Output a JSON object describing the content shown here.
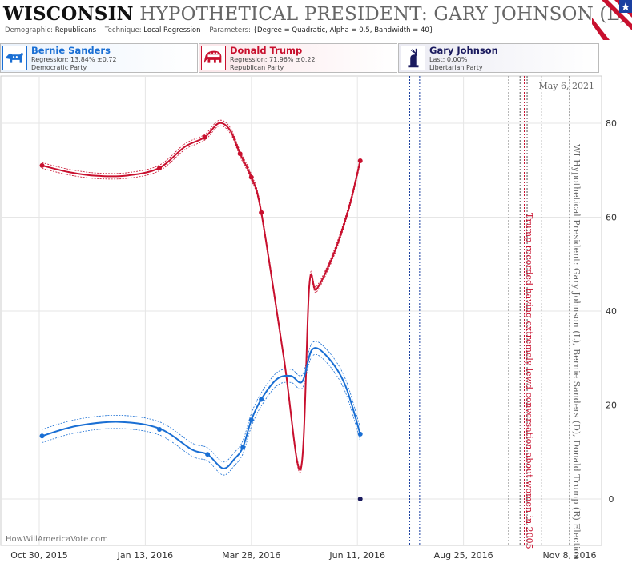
{
  "header": {
    "state": "WISCONSIN",
    "title_rest": "HYPOTHETICAL PRESIDENT: GARY JOHNSON (L) B",
    "demographic_label": "Demographic:",
    "demographic_value": "Republicans",
    "technique_label": "Technique:",
    "technique_value": "Local Regression",
    "parameters_label": "Parameters:",
    "parameters_value": "{Degree = Quadratic, Alpha = 0.5, Bandwidth = 40}"
  },
  "legend": [
    {
      "name": "Bernie Sanders",
      "line1": "Regression: 13.84% ±0.72",
      "line2": "Democratic Party",
      "color": "#1a6fd4",
      "icon": "donkey-icon"
    },
    {
      "name": "Donald Trump",
      "line1": "Regression: 71.96% ±0.22",
      "line2": "Republican Party",
      "color": "#c8102e",
      "icon": "elephant-icon"
    },
    {
      "name": "Gary Johnson",
      "line1": "Last: 0.00%",
      "line2": "Libertarian Party",
      "color": "#1a1a5e",
      "icon": "liberty-statue-icon"
    }
  ],
  "chart_data": {
    "type": "line",
    "x_tick_labels": [
      "Oct 30, 2015",
      "Jan 13, 2016",
      "Mar 28, 2016",
      "Jun 11, 2016",
      "Aug 25, 2016",
      "Nov 8, 2016"
    ],
    "y_ticks": [
      0,
      20,
      40,
      60,
      80
    ],
    "ylim": [
      -6,
      89
    ],
    "xlim": [
      "2015-10-20",
      "2016-11-14"
    ],
    "date_label": "May 6, 2021",
    "vertical_label": "WI Hypothetical President: Gary Johnson (L), Bernie Sanders (D), Donald Trump (R) Election",
    "annotation": "Trump recorded having extremely lewd conversation about women in 2005",
    "watermark": "HowWillAmericaVote.com",
    "grid": true,
    "series": [
      {
        "name": "Donald Trump",
        "color": "#c8102e",
        "points": [
          [
            "2015-11-01",
            71.0
          ],
          [
            "2016-01-23",
            70.5
          ],
          [
            "2016-02-24",
            77.0
          ],
          [
            "2016-03-20",
            73.5
          ],
          [
            "2016-03-28",
            68.5
          ],
          [
            "2016-04-04",
            61.0
          ],
          [
            "2016-06-13",
            72.0
          ]
        ],
        "curve": [
          [
            "2015-11-01",
            71.0
          ],
          [
            "2015-11-20",
            69.6
          ],
          [
            "2015-12-10",
            68.8
          ],
          [
            "2016-01-01",
            68.9
          ],
          [
            "2016-01-23",
            70.5
          ],
          [
            "2016-02-10",
            75.0
          ],
          [
            "2016-02-24",
            77.0
          ],
          [
            "2016-03-05",
            80.0
          ],
          [
            "2016-03-13",
            78.5
          ],
          [
            "2016-03-20",
            73.5
          ],
          [
            "2016-03-28",
            68.5
          ],
          [
            "2016-04-04",
            61.0
          ],
          [
            "2016-04-20",
            30.0
          ],
          [
            "2016-05-02",
            6.5
          ],
          [
            "2016-05-08",
            45.5
          ],
          [
            "2016-05-13",
            44.6
          ],
          [
            "2016-05-25",
            52.0
          ],
          [
            "2016-06-05",
            62.0
          ],
          [
            "2016-06-13",
            72.0
          ]
        ],
        "band": 0.6
      },
      {
        "name": "Bernie Sanders",
        "color": "#1a6fd4",
        "points": [
          [
            "2015-11-01",
            13.4
          ],
          [
            "2016-01-23",
            14.8
          ],
          [
            "2016-02-26",
            9.5
          ],
          [
            "2016-03-22",
            11.0
          ],
          [
            "2016-03-28",
            16.8
          ],
          [
            "2016-04-04",
            21.2
          ],
          [
            "2016-06-13",
            13.8
          ]
        ],
        "curve": [
          [
            "2015-11-01",
            13.4
          ],
          [
            "2015-11-25",
            15.5
          ],
          [
            "2015-12-25",
            16.4
          ],
          [
            "2016-01-23",
            15.0
          ],
          [
            "2016-02-15",
            10.5
          ],
          [
            "2016-02-26",
            9.5
          ],
          [
            "2016-03-08",
            6.5
          ],
          [
            "2016-03-16",
            8.5
          ],
          [
            "2016-03-22",
            11.0
          ],
          [
            "2016-03-28",
            16.8
          ],
          [
            "2016-04-04",
            21.2
          ],
          [
            "2016-04-15",
            25.5
          ],
          [
            "2016-04-25",
            26.2
          ],
          [
            "2016-05-03",
            25.0
          ],
          [
            "2016-05-10",
            31.8
          ],
          [
            "2016-05-20",
            30.5
          ],
          [
            "2016-06-02",
            24.5
          ],
          [
            "2016-06-13",
            13.8
          ]
        ],
        "band": 1.4
      },
      {
        "name": "Gary Johnson",
        "color": "#1a1a5e",
        "points": [
          [
            "2016-06-13",
            0.0
          ]
        ],
        "curve": [],
        "band": 0
      }
    ],
    "vlines": [
      {
        "date": "2016-07-18",
        "color": "#1a3fa0"
      },
      {
        "date": "2016-07-25",
        "color": "#1a3fa0"
      },
      {
        "date": "2016-09-26",
        "color": "#555555"
      },
      {
        "date": "2016-10-04",
        "color": "#555555"
      },
      {
        "date": "2016-10-07",
        "color": "#c8102e"
      },
      {
        "date": "2016-10-09",
        "color": "#555555"
      },
      {
        "date": "2016-10-19",
        "color": "#555555"
      },
      {
        "date": "2016-11-08",
        "color": "#555555"
      }
    ]
  }
}
